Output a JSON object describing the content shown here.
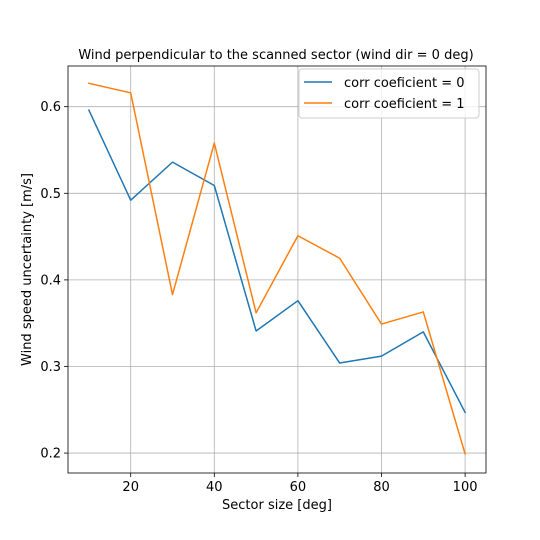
{
  "chart_data": {
    "type": "line",
    "title": "Wind perpendicular to the scanned sector (wind dir = 0 deg)",
    "xlabel": "Sector size [deg]",
    "ylabel": "Wind speed uncertainty [m/s]",
    "xlim": [
      5,
      105
    ],
    "ylim": [
      0.177,
      0.647
    ],
    "xticks": [
      20,
      40,
      60,
      80,
      100
    ],
    "xtick_labels": [
      "20",
      "40",
      "60",
      "80",
      "100"
    ],
    "yticks": [
      0.2,
      0.3,
      0.4,
      0.5,
      0.6
    ],
    "ytick_labels": [
      "0.2",
      "0.3",
      "0.4",
      "0.5",
      "0.6"
    ],
    "grid": true,
    "legend_position": "top-right",
    "x": [
      10,
      20,
      30,
      40,
      50,
      60,
      70,
      80,
      90,
      100
    ],
    "series": [
      {
        "name": "corr coeficient = 0",
        "color": "#1f77b4",
        "values": [
          0.596,
          0.492,
          0.536,
          0.509,
          0.341,
          0.376,
          0.304,
          0.312,
          0.34,
          0.247
        ]
      },
      {
        "name": "corr coeficient = 1",
        "color": "#ff7f0e",
        "values": [
          0.627,
          0.616,
          0.383,
          0.558,
          0.362,
          0.451,
          0.425,
          0.349,
          0.363,
          0.199
        ]
      }
    ]
  }
}
